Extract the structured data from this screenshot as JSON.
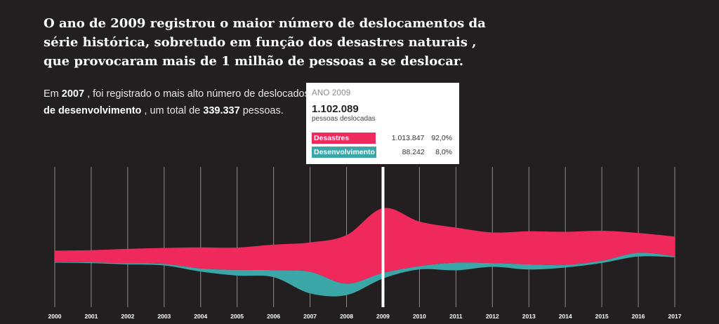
{
  "headline": "O ano de 2009 registrou o maior número de deslocamentos da série histórica, sobretudo em função dos desastres naturais , que provocaram mais de 1 milhão de pessoas a se deslocar.",
  "subtext": {
    "part1": "Em ",
    "year": "2007",
    "part2": " , foi registrado o mais alto número de deslocados",
    "part3": "de desenvolvimento",
    "part4": " , um total de ",
    "total": "339.337",
    "part5": " pessoas."
  },
  "tooltip": {
    "year_label": "ANO 2009",
    "total": "1.102.089",
    "caption": "pessoas deslocadas",
    "rows": [
      {
        "label": "Desastres",
        "value": "1.013.847",
        "pct": "92,0%",
        "color": "#f0295c"
      },
      {
        "label": "Desenvolvimento",
        "value": "88.242",
        "pct": "8,0%",
        "color": "#3aa6a8"
      }
    ]
  },
  "chart_data": {
    "type": "area",
    "x": [
      "2000",
      "2001",
      "2002",
      "2003",
      "2004",
      "2005",
      "2006",
      "2007",
      "2008",
      "2009",
      "2010",
      "2011",
      "2012",
      "2013",
      "2014",
      "2015",
      "2016",
      "2017"
    ],
    "selected": "2009",
    "series": [
      {
        "name": "Desastres",
        "color": "#f0295c",
        "values": [
          180000,
          190000,
          225000,
          250000,
          330000,
          350000,
          400000,
          460000,
          760000,
          1013847,
          700000,
          550000,
          480000,
          520000,
          520000,
          470000,
          310000,
          310000
        ]
      },
      {
        "name": "Desenvolvimento",
        "color": "#3aa6a8",
        "values": [
          10000,
          15000,
          20000,
          25000,
          50000,
          90000,
          110000,
          339337,
          180000,
          88242,
          50000,
          120000,
          60000,
          80000,
          40000,
          35000,
          60000,
          15000
        ]
      }
    ]
  }
}
